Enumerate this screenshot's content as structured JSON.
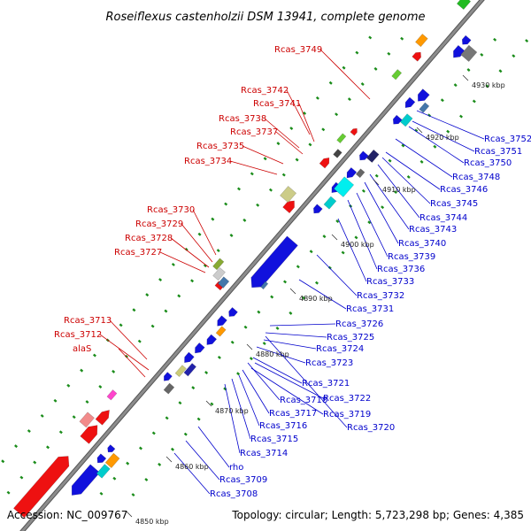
{
  "title": "Roseiflexus castenholzii DSM 13941, complete genome",
  "footer": {
    "accession": "Accession: NC_009767",
    "stats": "Topology: circular; Length: 5,723,298 bp; Genes: 4,385"
  },
  "colors": {
    "backbone": "#8c8c8c",
    "ticks": "#1a8c1a",
    "label_top": "#cc0000",
    "label_bottom": "#0000cc"
  },
  "kbp_markers": [
    "4850 kbp",
    "4860 kbp",
    "4870 kbp",
    "4880 kbp",
    "4890 kbp",
    "4900 kbp",
    "4910 kbp",
    "4920 kbp",
    "4930 kbp"
  ],
  "labels_top": [
    "Rcas_3749",
    "Rcas_3742",
    "Rcas_3741",
    "Rcas_3738",
    "Rcas_3737",
    "Rcas_3735",
    "Rcas_3734",
    "Rcas_3730",
    "Rcas_3729",
    "Rcas_3728",
    "Rcas_3727",
    "Rcas_3713",
    "Rcas_3712",
    "alaS"
  ],
  "labels_bottom": [
    "Rcas_3752",
    "Rcas_3751",
    "Rcas_3750",
    "Rcas_3748",
    "Rcas_3746",
    "Rcas_3745",
    "Rcas_3744",
    "Rcas_3743",
    "Rcas_3740",
    "Rcas_3739",
    "Rcas_3736",
    "Rcas_3733",
    "Rcas_3732",
    "Rcas_3731",
    "Rcas_3726",
    "Rcas_3725",
    "Rcas_3724",
    "Rcas_3723",
    "Rcas_3721",
    "Rcas_3722",
    "Rcas_3718",
    "Rcas_3719",
    "Rcas_3717",
    "Rcas_3716",
    "Rcas_3720",
    "Rcas_3715",
    "Rcas_3714",
    "rho",
    "Rcas_3709",
    "Rcas_3708"
  ]
}
